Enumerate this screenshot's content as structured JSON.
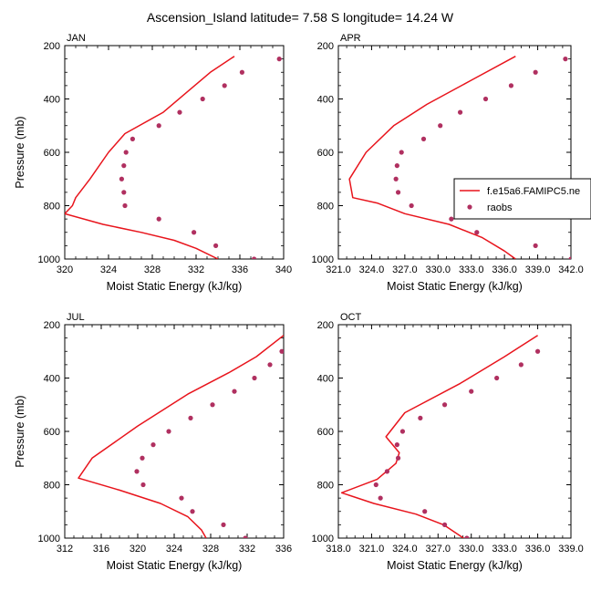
{
  "title": "Ascension_Island  latitude= 7.58 S longitude= 14.24 W",
  "legend": {
    "model_label": "f.e15a6.FAMIPC5.ne",
    "obs_label": "raobs"
  },
  "colors": {
    "model": "#e8141c",
    "obs": "#b03060",
    "axis": "#000000"
  },
  "chart_data": [
    {
      "type": "line",
      "month": "JAN",
      "xlabel": "Moist Static Energy (kJ/kg)",
      "ylabel": "Pressure (mb)",
      "xlim": [
        320,
        340
      ],
      "ylim": [
        1000,
        200
      ],
      "xticks": [
        "320",
        "324",
        "328",
        "332",
        "336",
        "340"
      ],
      "xtick_values": [
        320,
        324,
        328,
        332,
        336,
        340
      ],
      "yticks": [
        "200",
        "400",
        "600",
        "800",
        "1000"
      ],
      "ytick_values": [
        200,
        400,
        600,
        800,
        1000
      ],
      "series": [
        {
          "name": "f.e15a6.FAMIPC5.ne",
          "kind": "line",
          "x": [
            335.5,
            333.3,
            331.0,
            329.0,
            325.5,
            324.0,
            322.3,
            321.0,
            320.7,
            320.0,
            323.5,
            327.0,
            330.0,
            332.0,
            334.0
          ],
          "y": [
            240,
            300,
            380,
            450,
            530,
            600,
            700,
            770,
            800,
            830,
            870,
            900,
            930,
            960,
            1000
          ]
        },
        {
          "name": "raobs",
          "kind": "scatter",
          "x": [
            339.6,
            336.2,
            334.6,
            332.6,
            330.5,
            328.6,
            326.2,
            325.6,
            325.4,
            325.2,
            325.4,
            325.5,
            328.6,
            331.8,
            333.8,
            337.3
          ],
          "y": [
            250,
            300,
            350,
            400,
            450,
            500,
            550,
            600,
            650,
            700,
            750,
            800,
            850,
            900,
            950,
            1000
          ]
        }
      ]
    },
    {
      "type": "line",
      "month": "APR",
      "xlabel": "Moist Static Energy (kJ/kg)",
      "ylabel": "",
      "xlim": [
        321.0,
        342.0
      ],
      "ylim": [
        1000,
        200
      ],
      "xticks": [
        "321.0",
        "324.0",
        "327.0",
        "330.0",
        "333.0",
        "336.0",
        "339.0",
        "342.0"
      ],
      "xtick_values": [
        321,
        324,
        327,
        330,
        333,
        336,
        339,
        342
      ],
      "yticks": [
        "200",
        "400",
        "600",
        "800",
        "1000"
      ],
      "ytick_values": [
        200,
        400,
        600,
        800,
        1000
      ],
      "series": [
        {
          "name": "f.e15a6.FAMIPC5.ne",
          "kind": "line",
          "x": [
            337.0,
            333.0,
            329.0,
            326.0,
            323.5,
            322.0,
            322.3,
            324.5,
            327.0,
            331.0,
            334.0,
            336.0,
            337.0
          ],
          "y": [
            240,
            330,
            420,
            500,
            600,
            700,
            770,
            790,
            830,
            870,
            920,
            970,
            1000
          ]
        },
        {
          "name": "raobs",
          "kind": "scatter",
          "x": [
            341.5,
            338.8,
            336.6,
            334.3,
            332.0,
            330.2,
            328.7,
            326.7,
            326.3,
            326.2,
            326.4,
            327.6,
            331.2,
            333.5,
            338.8,
            342.0
          ],
          "y": [
            250,
            300,
            350,
            400,
            450,
            500,
            550,
            600,
            650,
            700,
            750,
            800,
            850,
            900,
            950,
            1000
          ]
        }
      ]
    },
    {
      "type": "line",
      "month": "JUL",
      "xlabel": "Moist Static Energy (kJ/kg)",
      "ylabel": "Pressure (mb)",
      "xlim": [
        312,
        336
      ],
      "ylim": [
        1000,
        200
      ],
      "xticks": [
        "312",
        "316",
        "320",
        "324",
        "328",
        "332",
        "336"
      ],
      "xtick_values": [
        312,
        316,
        320,
        324,
        328,
        332,
        336
      ],
      "yticks": [
        "200",
        "400",
        "600",
        "800",
        "1000"
      ],
      "ytick_values": [
        200,
        400,
        600,
        800,
        1000
      ],
      "series": [
        {
          "name": "f.e15a6.FAMIPC5.ne",
          "kind": "line",
          "x": [
            336.0,
            333.0,
            330.0,
            325.5,
            320.0,
            315.0,
            313.5,
            318.0,
            322.5,
            325.5,
            327.0,
            327.5
          ],
          "y": [
            240,
            320,
            380,
            460,
            580,
            700,
            775,
            820,
            870,
            920,
            970,
            1000
          ]
        },
        {
          "name": "raobs",
          "kind": "scatter",
          "x": [
            335.8,
            334.5,
            332.8,
            330.6,
            328.2,
            325.8,
            323.4,
            321.7,
            320.5,
            319.9,
            320.6,
            324.8,
            326.0,
            329.4,
            331.8
          ],
          "y": [
            300,
            350,
            400,
            450,
            500,
            550,
            600,
            650,
            700,
            750,
            800,
            850,
            900,
            950,
            1000
          ]
        }
      ]
    },
    {
      "type": "line",
      "month": "OCT",
      "xlabel": "Moist Static Energy (kJ/kg)",
      "ylabel": "",
      "xlim": [
        318.0,
        339.0
      ],
      "ylim": [
        1000,
        200
      ],
      "xticks": [
        "318.0",
        "321.0",
        "324.0",
        "327.0",
        "330.0",
        "333.0",
        "336.0",
        "339.0"
      ],
      "xtick_values": [
        318,
        321,
        324,
        327,
        330,
        333,
        336,
        339
      ],
      "yticks": [
        "200",
        "400",
        "600",
        "800",
        "1000"
      ],
      "ytick_values": [
        200,
        400,
        600,
        800,
        1000
      ],
      "series": [
        {
          "name": "f.e15a6.FAMIPC5.ne",
          "kind": "line",
          "x": [
            336.0,
            333.0,
            329.0,
            324.0,
            322.3,
            323.5,
            323.2,
            321.5,
            318.3,
            321.2,
            325.0,
            327.5,
            329.3
          ],
          "y": [
            240,
            320,
            420,
            530,
            620,
            680,
            720,
            780,
            830,
            870,
            910,
            950,
            1000
          ]
        },
        {
          "name": "raobs",
          "kind": "scatter",
          "x": [
            336.0,
            334.5,
            332.3,
            330.0,
            327.6,
            325.4,
            323.8,
            323.3,
            323.4,
            322.4,
            321.4,
            321.8,
            325.8,
            327.6,
            329.6
          ],
          "y": [
            300,
            350,
            400,
            450,
            500,
            550,
            600,
            650,
            700,
            750,
            800,
            850,
            900,
            950,
            1000
          ]
        }
      ]
    }
  ]
}
